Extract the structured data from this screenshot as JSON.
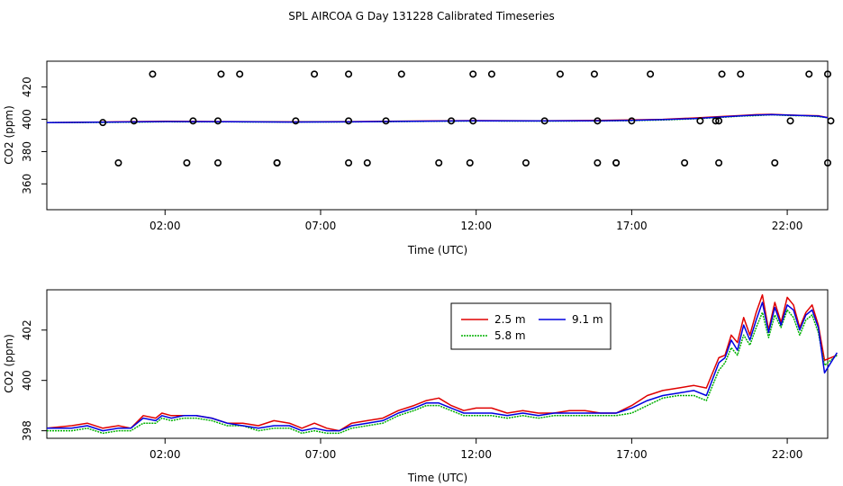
{
  "title": "SPL AIRCOA G  Day 131228  Calibrated Timeseries",
  "chart_data": [
    {
      "type": "scatter",
      "xlabel": "Time (UTC)",
      "ylabel": "CO2 (ppm)",
      "xlim": [
        -1.8,
        23.3
      ],
      "ylim": [
        344,
        436
      ],
      "x_ticks": [
        {
          "value": 2,
          "label": "02:00"
        },
        {
          "value": 7,
          "label": "07:00"
        },
        {
          "value": 12,
          "label": "12:00"
        },
        {
          "value": 17,
          "label": "17:00"
        },
        {
          "value": 22,
          "label": "22:00"
        }
      ],
      "y_ticks": [
        360,
        380,
        400,
        420
      ],
      "calibration_points": {
        "x": [
          0.5,
          1.6,
          1.0,
          0.0,
          2.7,
          3.8,
          3.7,
          2.9,
          3.7,
          4.4,
          5.6,
          5.6,
          6.2,
          6.8,
          7.9,
          7.9,
          7.9,
          8.5,
          9.1,
          9.6,
          10.8,
          11.2,
          11.9,
          11.8,
          11.9,
          12.5,
          13.6,
          14.2,
          14.7,
          15.8,
          15.9,
          15.9,
          16.5,
          16.5,
          17.0,
          17.6,
          18.7,
          19.2,
          19.8,
          19.8,
          19.9,
          19.7,
          20.5,
          21.6,
          22.1,
          22.7,
          23.3,
          23.3,
          23.4
        ],
        "y": [
          373,
          428,
          399,
          398,
          373,
          428,
          399,
          399,
          373,
          428,
          373,
          373,
          399,
          428,
          428,
          399,
          373,
          373,
          399,
          428,
          373,
          399,
          428,
          373,
          399,
          428,
          373,
          399,
          428,
          428,
          399,
          373,
          373,
          373,
          399,
          428,
          373,
          399,
          373,
          399,
          428,
          399,
          428,
          373,
          399,
          428,
          428,
          373,
          399
        ],
        "marker": "open-circle",
        "color": "#000000"
      },
      "series": [
        {
          "color": "#e00000",
          "x": [
            -1.8,
            0,
            2,
            4,
            6,
            8,
            10,
            12,
            14,
            16,
            17,
            18,
            19,
            20,
            20.5,
            21,
            21.5,
            22,
            22.5,
            23,
            23.3
          ],
          "y": [
            398,
            398.3,
            398.8,
            398.6,
            398.4,
            398.6,
            398.9,
            399.2,
            399.1,
            399.3,
            399.6,
            400.0,
            400.8,
            401.8,
            402.3,
            402.9,
            403.1,
            402.7,
            402.4,
            402.2,
            401.1
          ]
        },
        {
          "color": "#00b000",
          "x": [
            -1.8,
            0,
            2,
            4,
            6,
            8,
            10,
            12,
            14,
            16,
            17,
            18,
            19,
            20,
            20.5,
            21,
            21.5,
            22,
            22.5,
            23,
            23.3
          ],
          "y": [
            398,
            398.1,
            398.5,
            398.4,
            398.3,
            398.4,
            398.7,
            399.0,
            398.9,
            399.0,
            399.2,
            399.6,
            400.3,
            401.4,
            402.0,
            402.3,
            402.8,
            402.4,
            402.2,
            401.7,
            401.0
          ]
        },
        {
          "color": "#0000e0",
          "x": [
            -1.8,
            0,
            2,
            4,
            6,
            8,
            10,
            12,
            14,
            16,
            17,
            18,
            19,
            20,
            20.5,
            21,
            21.5,
            22,
            22.5,
            23,
            23.3
          ],
          "y": [
            398,
            398.2,
            398.6,
            398.5,
            398.3,
            398.4,
            398.8,
            399.1,
            399.0,
            399.1,
            399.3,
            399.8,
            400.5,
            401.6,
            402.1,
            402.6,
            402.9,
            402.6,
            402.3,
            402.0,
            401.0
          ]
        }
      ]
    },
    {
      "type": "line",
      "xlabel": "Time (UTC)",
      "ylabel": "CO2 (ppm)",
      "xlim": [
        -1.8,
        23.3
      ],
      "ylim": [
        397.7,
        403.6
      ],
      "x_ticks": [
        {
          "value": 2,
          "label": "02:00"
        },
        {
          "value": 7,
          "label": "07:00"
        },
        {
          "value": 12,
          "label": "12:00"
        },
        {
          "value": 17,
          "label": "17:00"
        },
        {
          "value": 22,
          "label": "22:00"
        }
      ],
      "y_ticks": [
        398,
        400,
        402
      ],
      "legend": "top-center",
      "series": [
        {
          "name": "2.5 m",
          "color": "#e00000",
          "x": [
            -1.8,
            -1.0,
            -0.5,
            0.0,
            0.5,
            0.9,
            1.3,
            1.7,
            1.9,
            2.2,
            2.6,
            3.0,
            3.5,
            4.0,
            4.5,
            5.0,
            5.5,
            6.0,
            6.4,
            6.8,
            7.2,
            7.6,
            8.0,
            8.5,
            9.0,
            9.5,
            10.0,
            10.4,
            10.8,
            11.2,
            11.6,
            12.0,
            12.5,
            13.0,
            13.5,
            14.0,
            14.5,
            15.0,
            15.5,
            16.0,
            16.5,
            17.0,
            17.5,
            18.0,
            18.5,
            19.0,
            19.4,
            19.8,
            20.0,
            20.2,
            20.4,
            20.6,
            20.8,
            21.0,
            21.2,
            21.4,
            21.6,
            21.8,
            22.0,
            22.2,
            22.4,
            22.6,
            22.8,
            23.0,
            23.2,
            23.6
          ],
          "y": [
            398.1,
            398.2,
            398.3,
            398.1,
            398.2,
            398.1,
            398.6,
            398.5,
            398.7,
            398.6,
            398.6,
            398.6,
            398.5,
            398.3,
            398.3,
            398.2,
            398.4,
            398.3,
            398.1,
            398.3,
            398.1,
            398.0,
            398.3,
            398.4,
            398.5,
            398.8,
            399.0,
            399.2,
            399.3,
            399.0,
            398.8,
            398.9,
            398.9,
            398.7,
            398.8,
            398.7,
            398.7,
            398.8,
            398.8,
            398.7,
            398.7,
            399.0,
            399.4,
            399.6,
            399.7,
            399.8,
            399.7,
            400.9,
            401.0,
            401.8,
            401.5,
            402.5,
            401.8,
            402.7,
            403.4,
            402.0,
            403.1,
            402.3,
            403.3,
            403.0,
            402.1,
            402.7,
            403.0,
            402.2,
            400.8,
            401.0
          ]
        },
        {
          "name": "5.8 m",
          "color": "#00b000",
          "x": [
            -1.8,
            -1.0,
            -0.5,
            0.0,
            0.5,
            0.9,
            1.3,
            1.7,
            1.9,
            2.2,
            2.6,
            3.0,
            3.5,
            4.0,
            4.5,
            5.0,
            5.5,
            6.0,
            6.4,
            6.8,
            7.2,
            7.6,
            8.0,
            8.5,
            9.0,
            9.5,
            10.0,
            10.4,
            10.8,
            11.2,
            11.6,
            12.0,
            12.5,
            13.0,
            13.5,
            14.0,
            14.5,
            15.0,
            15.5,
            16.0,
            16.5,
            17.0,
            17.5,
            18.0,
            18.5,
            19.0,
            19.4,
            19.8,
            20.0,
            20.2,
            20.4,
            20.6,
            20.8,
            21.0,
            21.2,
            21.4,
            21.6,
            21.8,
            22.0,
            22.2,
            22.4,
            22.6,
            22.8,
            23.0,
            23.2,
            23.6
          ],
          "y": [
            398.0,
            398.0,
            398.1,
            397.9,
            398.0,
            398.0,
            398.3,
            398.3,
            398.5,
            398.4,
            398.5,
            398.5,
            398.4,
            398.2,
            398.2,
            398.0,
            398.1,
            398.1,
            397.9,
            398.0,
            397.9,
            397.9,
            398.1,
            398.2,
            398.3,
            398.6,
            398.8,
            399.0,
            399.0,
            398.8,
            398.6,
            398.6,
            398.6,
            398.5,
            398.6,
            398.5,
            398.6,
            398.6,
            398.6,
            398.6,
            398.6,
            398.7,
            399.0,
            399.3,
            399.4,
            399.4,
            399.2,
            400.4,
            400.7,
            401.3,
            401.0,
            401.8,
            401.4,
            402.1,
            402.7,
            401.7,
            402.6,
            402.1,
            402.8,
            402.5,
            401.8,
            402.4,
            402.6,
            401.9,
            400.6,
            401.0
          ]
        },
        {
          "name": "9.1 m",
          "color": "#0000e0",
          "x": [
            -1.8,
            -1.0,
            -0.5,
            0.0,
            0.5,
            0.9,
            1.3,
            1.7,
            1.9,
            2.2,
            2.6,
            3.0,
            3.5,
            4.0,
            4.5,
            5.0,
            5.5,
            6.0,
            6.4,
            6.8,
            7.2,
            7.6,
            8.0,
            8.5,
            9.0,
            9.5,
            10.0,
            10.4,
            10.8,
            11.2,
            11.6,
            12.0,
            12.5,
            13.0,
            13.5,
            14.0,
            14.5,
            15.0,
            15.5,
            16.0,
            16.5,
            17.0,
            17.5,
            18.0,
            18.5,
            19.0,
            19.4,
            19.8,
            20.0,
            20.2,
            20.4,
            20.6,
            20.8,
            21.0,
            21.2,
            21.4,
            21.6,
            21.8,
            22.0,
            22.2,
            22.4,
            22.6,
            22.8,
            23.0,
            23.2,
            23.6
          ],
          "y": [
            398.1,
            398.1,
            398.2,
            398.0,
            398.1,
            398.1,
            398.5,
            398.4,
            398.6,
            398.5,
            398.6,
            398.6,
            398.5,
            398.3,
            398.2,
            398.1,
            398.2,
            398.2,
            398.0,
            398.1,
            398.0,
            398.0,
            398.2,
            398.3,
            398.4,
            398.7,
            398.9,
            399.1,
            399.1,
            398.9,
            398.7,
            398.7,
            398.7,
            398.6,
            398.7,
            398.6,
            398.7,
            398.7,
            398.7,
            398.7,
            398.7,
            398.9,
            399.2,
            399.4,
            399.5,
            399.6,
            399.4,
            400.7,
            400.9,
            401.6,
            401.2,
            402.2,
            401.6,
            402.4,
            403.1,
            401.9,
            402.9,
            402.2,
            403.0,
            402.8,
            402.0,
            402.6,
            402.8,
            402.1,
            400.3,
            401.1
          ]
        }
      ]
    }
  ]
}
